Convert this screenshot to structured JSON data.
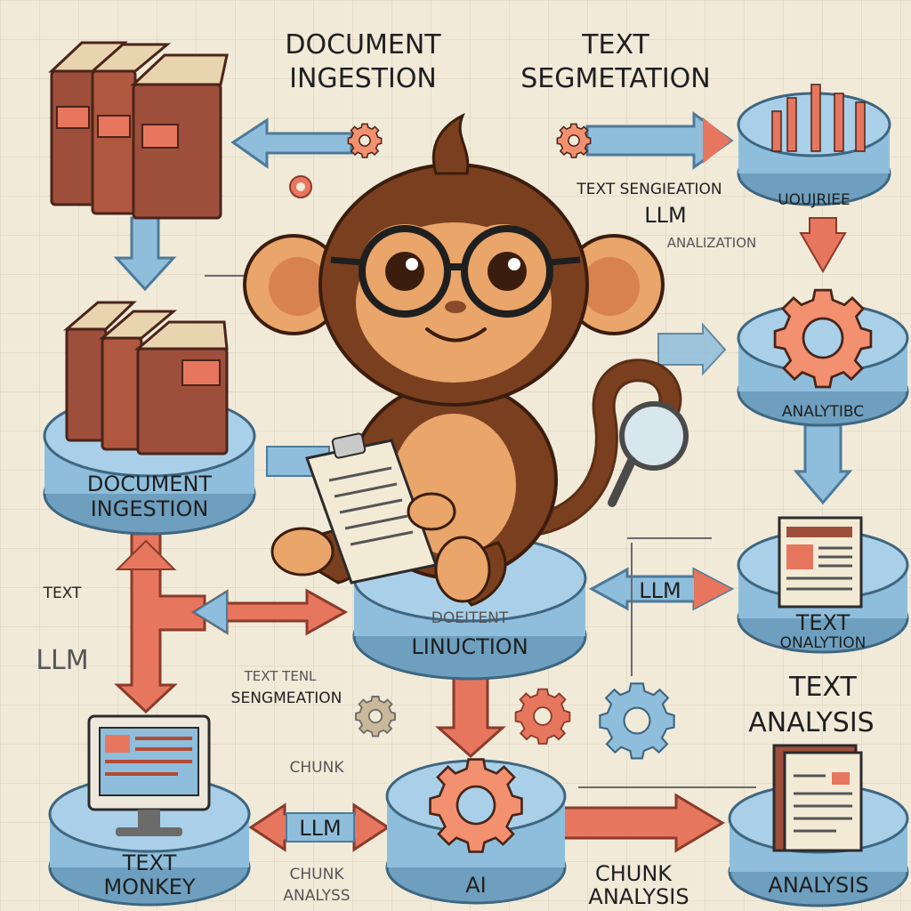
{
  "titles": {
    "top_left": [
      "DOCUMENT",
      "INGESTION"
    ],
    "top_center": [
      "TEXT",
      "SEGMETATION"
    ]
  },
  "labels": {
    "right_mid_text_1": "TEXT SENGIEATION",
    "right_mid_text_2": "LLM",
    "right_mid_text_3": "ANALIZATION",
    "top_right_platform": "UOUJRIEE",
    "right_gear_platform": "ANALYTIBC",
    "left_platform": [
      "DOCUMENT",
      "INGESTION"
    ],
    "center_platform": [
      "DOEITENT",
      "LINUCTION"
    ],
    "left_side_text": "TEXT",
    "left_side_llm": "LLM",
    "center_llm_arrow": "LLM",
    "center_small_1": "TEXT TENL",
    "center_small_2": "SENGMEATION",
    "chunk_center": "CHUNK",
    "right_doc_platform": [
      "TEXT",
      "ONALYTION"
    ],
    "right_big_text": [
      "TEXT",
      "ANALYSIS"
    ],
    "bottom_left_platform": [
      "TEXT",
      "MONKEY"
    ],
    "bottom_llm_arrow": "LLM",
    "bottom_chunk_left": [
      "CHUNK",
      "ANALYSS"
    ],
    "bottom_ai_platform": "AI",
    "bottom_chunk_right": [
      "CHUNK",
      "ANALYSIS"
    ],
    "bottom_right_platform": "ANALYSIS"
  },
  "colors": {
    "background": "#f1ead9",
    "platform": "#8fbedc",
    "arrow_blue": "#8fbedc",
    "arrow_red": "#e7765f",
    "gear": "#f2906f",
    "book": "#9e4f3c",
    "monkey_fur": "#7a3f1e",
    "monkey_skin": "#e9a56a"
  },
  "icons": [
    "book-stack-icon",
    "bar-chart-icon",
    "gear-icon",
    "monitor-icon",
    "document-icon",
    "magnifier-icon",
    "clipboard-icon",
    "monkey-mascot"
  ]
}
